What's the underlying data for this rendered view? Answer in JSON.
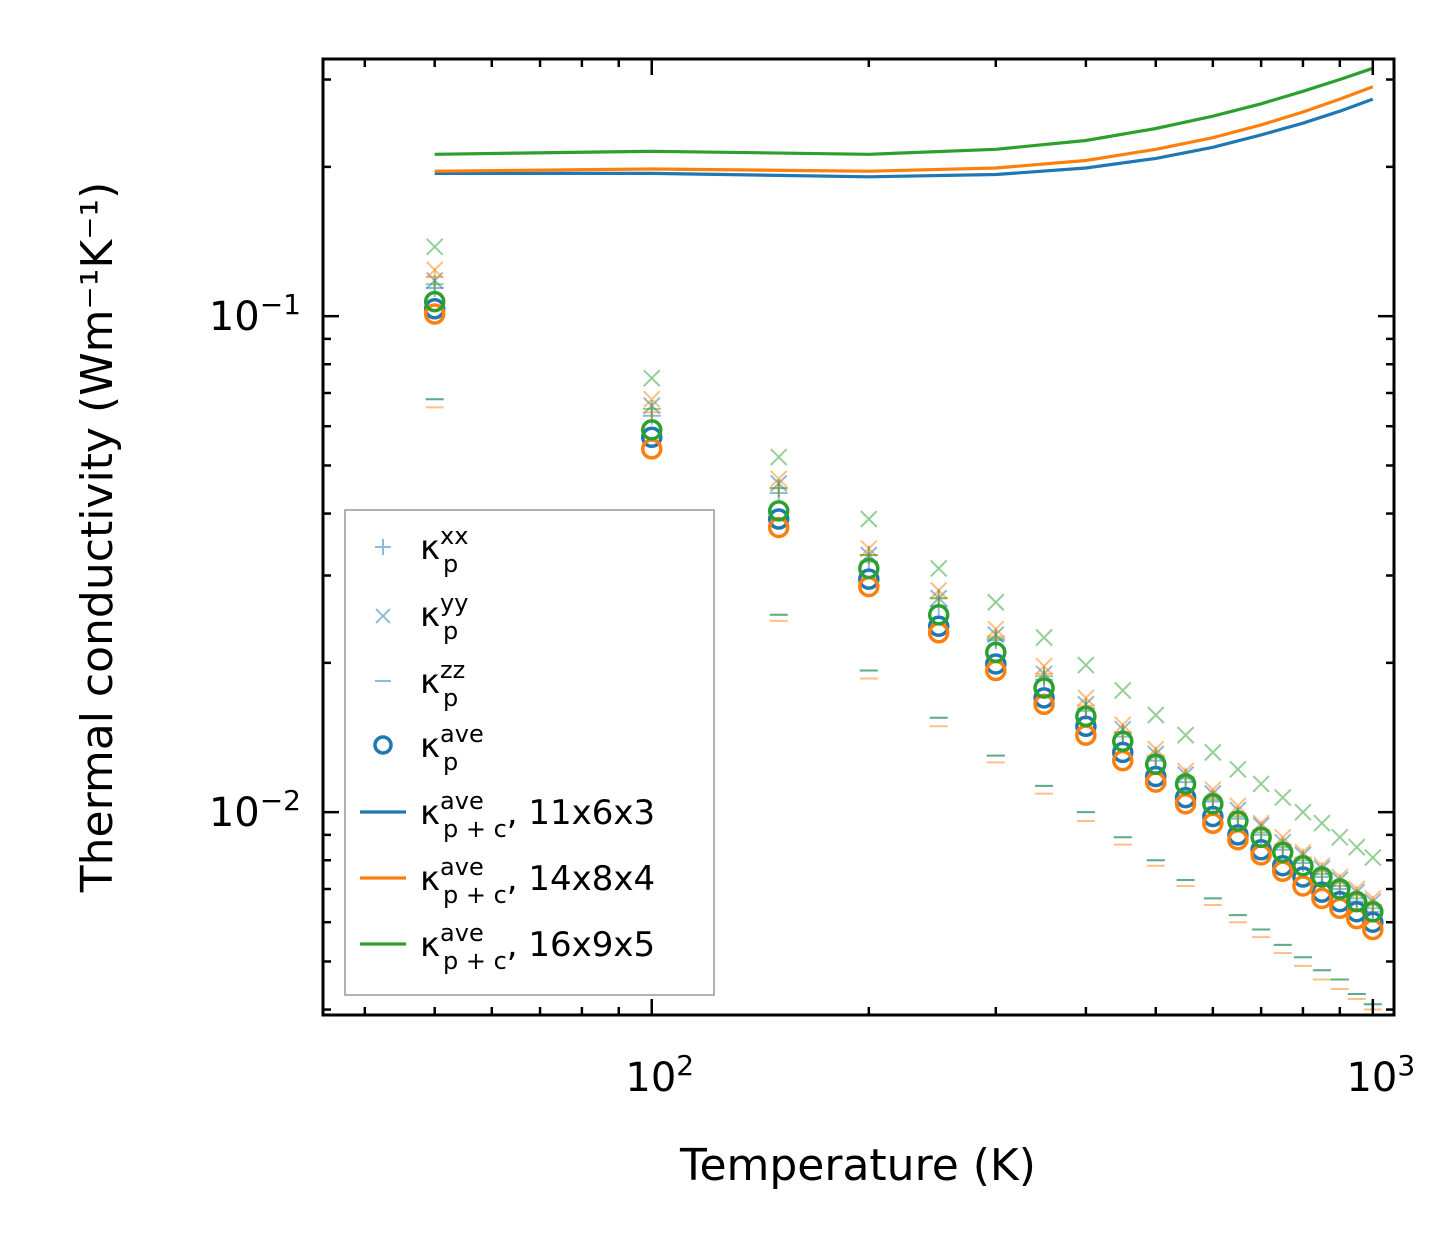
{
  "chart_data": {
    "type": "scatter",
    "xscale": "log",
    "yscale": "log",
    "xlabel": "Temperature (K)",
    "ylabel": "Thermal conductivity (Wm⁻¹K⁻¹)",
    "xlim": [
      35,
      1070
    ],
    "ylim": [
      0.0039,
      0.33
    ],
    "x_ticks": [
      {
        "base": "10",
        "exp": "2",
        "value": 100
      },
      {
        "base": "10",
        "exp": "3",
        "value": 1000
      }
    ],
    "y_ticks": [
      {
        "base": "10",
        "exp": "−1",
        "value": 0.1
      },
      {
        "base": "10",
        "exp": "−2",
        "value": 0.01
      }
    ],
    "temperatures": [
      50,
      100,
      150,
      200,
      250,
      300,
      350,
      400,
      450,
      500,
      550,
      600,
      650,
      700,
      750,
      800,
      850,
      900,
      950,
      1000
    ],
    "legend": [
      {
        "symbol": "plus",
        "label": "κ",
        "sub": "p",
        "sup": "xx",
        "suffix": "",
        "color": "#1f77b4"
      },
      {
        "symbol": "x",
        "label": "κ",
        "sub": "p",
        "sup": "yy",
        "suffix": "",
        "color": "#1f77b4"
      },
      {
        "symbol": "dash",
        "label": "κ",
        "sub": "p",
        "sup": "zz",
        "suffix": "",
        "color": "#1f77b4"
      },
      {
        "symbol": "circle",
        "label": "κ",
        "sub": "p",
        "sup": "ave",
        "suffix": "",
        "color": "#1f77b4"
      },
      {
        "symbol": "line",
        "label": "κ",
        "sub": "p + c",
        "sup": "ave",
        "suffix": ", 11x6x3",
        "color": "#1f77b4"
      },
      {
        "symbol": "line",
        "label": "κ",
        "sub": "p + c",
        "sup": "ave",
        "suffix": ", 14x8x4",
        "color": "#ff7f0e"
      },
      {
        "symbol": "line",
        "label": "κ",
        "sub": "p + c",
        "sup": "ave",
        "suffix": ", 16x9x5",
        "color": "#2ca02c"
      }
    ],
    "series": [
      {
        "name": "11x6x3",
        "color": "#1f77b4",
        "kappa_p_xx": [
          0.114,
          0.063,
          0.044,
          0.032,
          0.026,
          0.0222,
          0.0185,
          0.016,
          0.0142,
          0.0127,
          0.0115,
          0.0105,
          0.0097,
          0.009,
          0.0084,
          0.0079,
          0.0074,
          0.007,
          0.0066,
          0.0063
        ],
        "kappa_p_yy": [
          0.118,
          0.066,
          0.046,
          0.033,
          0.027,
          0.0228,
          0.019,
          0.0165,
          0.0147,
          0.0131,
          0.0119,
          0.0109,
          0.0101,
          0.0094,
          0.0087,
          0.0082,
          0.0077,
          0.0073,
          0.0069,
          0.0066
        ],
        "kappa_p_zz": [
          0.068,
          0.036,
          0.025,
          0.0193,
          0.0155,
          0.013,
          0.0113,
          0.01,
          0.0089,
          0.008,
          0.0073,
          0.0067,
          0.0062,
          0.0058,
          0.0054,
          0.0051,
          0.0048,
          0.0046,
          0.0043,
          0.0041
        ],
        "kappa_p_ave": [
          0.1035,
          0.057,
          0.039,
          0.0295,
          0.0237,
          0.0199,
          0.017,
          0.0149,
          0.0132,
          0.0118,
          0.0107,
          0.0098,
          0.009,
          0.0084,
          0.0078,
          0.0074,
          0.0069,
          0.0066,
          0.0063,
          0.006
        ],
        "kappa_pc_ave_T": [
          50,
          100,
          200,
          300,
          400,
          500,
          600,
          700,
          800,
          900,
          1000
        ],
        "kappa_pc_ave": [
          0.194,
          0.194,
          0.191,
          0.193,
          0.199,
          0.208,
          0.219,
          0.232,
          0.245,
          0.259,
          0.274
        ]
      },
      {
        "name": "14x8x4",
        "color": "#ff7f0e",
        "kappa_p_xx": [
          0.12,
          0.064,
          0.045,
          0.033,
          0.027,
          0.0226,
          0.019,
          0.0164,
          0.0145,
          0.013,
          0.0118,
          0.0107,
          0.0099,
          0.0092,
          0.0086,
          0.0081,
          0.0076,
          0.0072,
          0.0068,
          0.0065
        ],
        "kappa_p_yy": [
          0.124,
          0.068,
          0.047,
          0.034,
          0.028,
          0.0234,
          0.0197,
          0.017,
          0.015,
          0.0134,
          0.0121,
          0.0111,
          0.0103,
          0.0095,
          0.0089,
          0.0083,
          0.0078,
          0.0074,
          0.007,
          0.0067
        ],
        "kappa_p_zz": [
          0.0655,
          0.0345,
          0.0243,
          0.0186,
          0.0149,
          0.0126,
          0.0109,
          0.0096,
          0.0086,
          0.0078,
          0.0071,
          0.0065,
          0.006,
          0.0056,
          0.0052,
          0.0049,
          0.0046,
          0.0044,
          0.0042,
          0.004
        ],
        "kappa_p_ave": [
          0.101,
          0.054,
          0.0375,
          0.0285,
          0.023,
          0.0193,
          0.0165,
          0.0143,
          0.0127,
          0.0115,
          0.0104,
          0.0095,
          0.0088,
          0.0082,
          0.0076,
          0.0071,
          0.0067,
          0.0064,
          0.0061,
          0.0058
        ],
        "kappa_pc_ave_T": [
          50,
          100,
          200,
          300,
          400,
          500,
          600,
          700,
          800,
          900,
          1000
        ],
        "kappa_pc_ave": [
          0.196,
          0.198,
          0.196,
          0.199,
          0.206,
          0.217,
          0.229,
          0.243,
          0.258,
          0.274,
          0.29
        ]
      },
      {
        "name": "16x9x5",
        "color": "#2ca02c",
        "kappa_p_xx": [
          0.116,
          0.065,
          0.045,
          0.033,
          0.027,
          0.0224,
          0.0188,
          0.0162,
          0.0144,
          0.0129,
          0.0117,
          0.0106,
          0.0098,
          0.0091,
          0.0085,
          0.008,
          0.0075,
          0.0071,
          0.0067,
          0.0064
        ],
        "kappa_p_yy": [
          0.138,
          0.075,
          0.052,
          0.039,
          0.031,
          0.0265,
          0.0225,
          0.0198,
          0.0176,
          0.0157,
          0.0143,
          0.0132,
          0.0122,
          0.0114,
          0.0107,
          0.01,
          0.0095,
          0.0089,
          0.0085,
          0.0081
        ],
        "kappa_p_zz": [
          0.068,
          0.036,
          0.025,
          0.0193,
          0.0155,
          0.013,
          0.0113,
          0.01,
          0.0089,
          0.008,
          0.0073,
          0.0067,
          0.0062,
          0.0058,
          0.0054,
          0.0051,
          0.0048,
          0.0046,
          0.0043,
          0.0041
        ],
        "kappa_p_ave": [
          0.107,
          0.059,
          0.0405,
          0.031,
          0.025,
          0.021,
          0.0178,
          0.0156,
          0.0139,
          0.0125,
          0.0114,
          0.0104,
          0.0096,
          0.0089,
          0.0083,
          0.0078,
          0.0074,
          0.007,
          0.0066,
          0.0063
        ],
        "kappa_pc_ave_T": [
          50,
          100,
          200,
          300,
          400,
          500,
          600,
          700,
          800,
          900,
          1000
        ],
        "kappa_pc_ave": [
          0.212,
          0.215,
          0.212,
          0.217,
          0.226,
          0.239,
          0.253,
          0.268,
          0.284,
          0.3,
          0.316
        ]
      }
    ]
  }
}
